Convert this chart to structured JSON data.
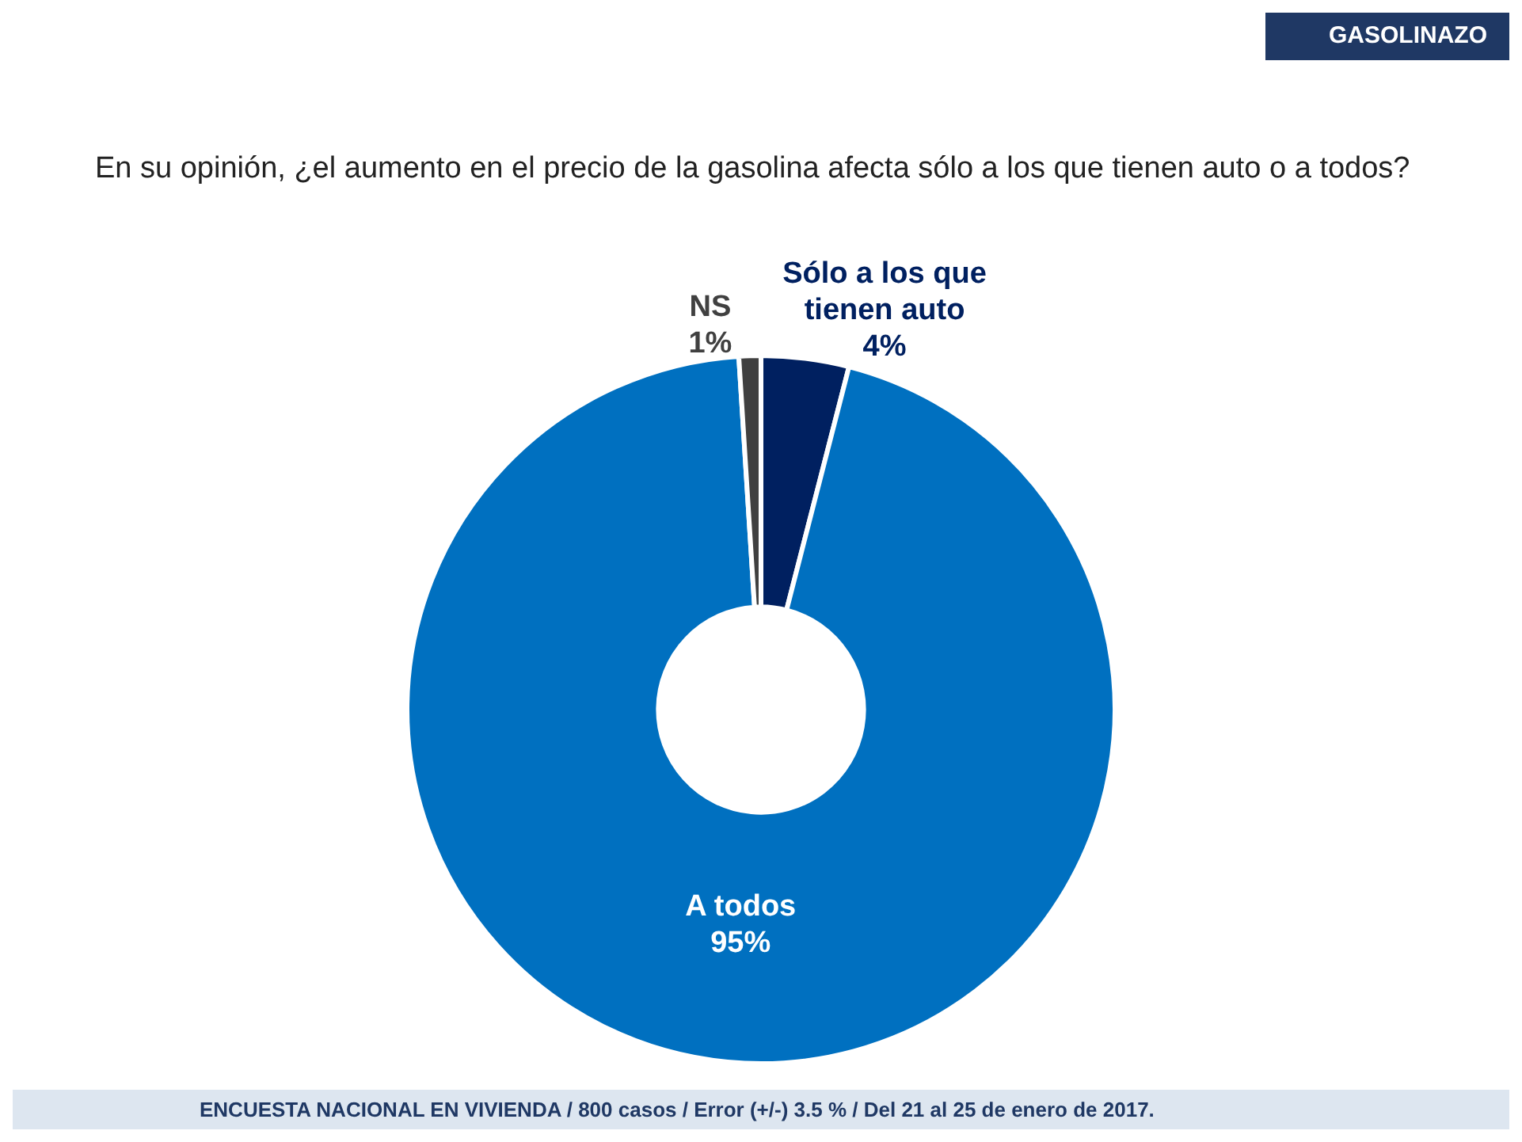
{
  "chart_data": {
    "type": "donut",
    "title": "En su opinión, ¿el aumento en el precio de la gasolina afecta sólo a los que tienen auto o a todos?",
    "subtitle": "GASOLINAZO",
    "categories": [
      "Sólo a los que tienen auto",
      "A todos",
      "NS"
    ],
    "values": [
      4,
      95,
      1
    ],
    "colors": [
      "#002060",
      "#0070c0",
      "#404040"
    ],
    "value_labels": [
      "4%",
      "95%",
      "1%"
    ],
    "annotations": [
      "ENCUESTA NACIONAL EN VIVIENDA / 800 casos / Error (+/-) 3.5 % / Del 21 al 25 de enero de 2017."
    ],
    "legend": false
  }
}
